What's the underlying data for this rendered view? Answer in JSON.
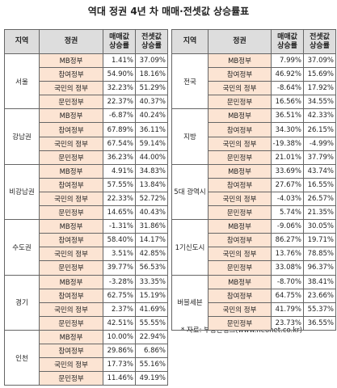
{
  "title": "역대 정권 4년 차 매매·전셋값 상승률표",
  "header": [
    "지역",
    "정권",
    "매매값 상승률",
    "전셋값 상승률"
  ],
  "tables": [
    {
      "regions": [
        {
          "name": "서울",
          "rows": [
            {
              "gov": "MB정부",
              "sale": "1.41%",
              "jeonse": "37.09%"
            },
            {
              "gov": "참여정부",
              "sale": "54.90%",
              "jeonse": "18.16%"
            },
            {
              "gov": "국민의 정부",
              "sale": "32.23%",
              "jeonse": "51.29%"
            },
            {
              "gov": "문민정부",
              "sale": "22.37%",
              "jeonse": "40.37%"
            }
          ]
        },
        {
          "name": "강남권",
          "rows": [
            {
              "gov": "MB정부",
              "sale": "-6.87%",
              "jeonse": "40.24%"
            },
            {
              "gov": "참여정부",
              "sale": "67.89%",
              "jeonse": "36.11%"
            },
            {
              "gov": "국민의 정부",
              "sale": "67.54%",
              "jeonse": "59.14%"
            },
            {
              "gov": "문민정부",
              "sale": "36.23%",
              "jeonse": "44.00%"
            }
          ]
        },
        {
          "name": "비강남권",
          "rows": [
            {
              "gov": "MB정부",
              "sale": "4.91%",
              "jeonse": "34.83%"
            },
            {
              "gov": "참여정부",
              "sale": "57.55%",
              "jeonse": "13.84%"
            },
            {
              "gov": "국민의 정부",
              "sale": "22.33%",
              "jeonse": "52.72%"
            },
            {
              "gov": "문민정부",
              "sale": "14.65%",
              "jeonse": "40.43%"
            }
          ]
        },
        {
          "name": "수도권",
          "rows": [
            {
              "gov": "MB정부",
              "sale": "-1.31%",
              "jeonse": "31.86%"
            },
            {
              "gov": "참여정부",
              "sale": "58.40%",
              "jeonse": "14.17%"
            },
            {
              "gov": "국민의 정부",
              "sale": "3.51%",
              "jeonse": "42.85%"
            },
            {
              "gov": "문민정부",
              "sale": "39.77%",
              "jeonse": "56.53%"
            }
          ]
        },
        {
          "name": "경기",
          "rows": [
            {
              "gov": "MB정부",
              "sale": "-3.28%",
              "jeonse": "33.35%"
            },
            {
              "gov": "참여정부",
              "sale": "62.75%",
              "jeonse": "15.19%"
            },
            {
              "gov": "국민의 정부",
              "sale": "2.37%",
              "jeonse": "41.69%"
            },
            {
              "gov": "문민정부",
              "sale": "42.51%",
              "jeonse": "55.55%"
            }
          ]
        },
        {
          "name": "인천",
          "rows": [
            {
              "gov": "MB정부",
              "sale": "10.00%",
              "jeonse": "22.94%"
            },
            {
              "gov": "참여정부",
              "sale": "29.86%",
              "jeonse": "6.86%"
            },
            {
              "gov": "국민의 정부",
              "sale": "17.73%",
              "jeonse": "55.16%"
            },
            {
              "gov": "문민정부",
              "sale": "11.46%",
              "jeonse": "49.19%"
            }
          ]
        }
      ]
    },
    {
      "regions": [
        {
          "name": "전국",
          "rows": [
            {
              "gov": "MB정부",
              "sale": "7.99%",
              "jeonse": "37.09%"
            },
            {
              "gov": "참여정부",
              "sale": "46.92%",
              "jeonse": "15.69%"
            },
            {
              "gov": "국민의 정부",
              "sale": "-8.64%",
              "jeonse": "17.92%"
            },
            {
              "gov": "문민정부",
              "sale": "16.56%",
              "jeonse": "34.55%"
            }
          ]
        },
        {
          "name": "지방",
          "rows": [
            {
              "gov": "MB정부",
              "sale": "36.51%",
              "jeonse": "42.33%"
            },
            {
              "gov": "참여정부",
              "sale": "34.30%",
              "jeonse": "26.15%"
            },
            {
              "gov": "국민의 정부",
              "sale": "-19.38%",
              "jeonse": "-4.99%"
            },
            {
              "gov": "문민정부",
              "sale": "21.01%",
              "jeonse": "37.79%"
            }
          ]
        },
        {
          "name": "5대 광역시",
          "rows": [
            {
              "gov": "MB정부",
              "sale": "33.69%",
              "jeonse": "43.74%"
            },
            {
              "gov": "참여정부",
              "sale": "27.67%",
              "jeonse": "16.55%"
            },
            {
              "gov": "국민의 정부",
              "sale": "-4.03%",
              "jeonse": "26.57%"
            },
            {
              "gov": "문민정부",
              "sale": "5.74%",
              "jeonse": "21.35%"
            }
          ]
        },
        {
          "name": "1기신도시",
          "rows": [
            {
              "gov": "MB정부",
              "sale": "-9.06%",
              "jeonse": "30.05%"
            },
            {
              "gov": "참여정부",
              "sale": "86.27%",
              "jeonse": "19.71%"
            },
            {
              "gov": "국민의 정부",
              "sale": "13.76%",
              "jeonse": "78.85%"
            },
            {
              "gov": "문민정부",
              "sale": "33.08%",
              "jeonse": "96.37%"
            }
          ]
        },
        {
          "name": "버블세븐",
          "rows": [
            {
              "gov": "MB정부",
              "sale": "-8.70%",
              "jeonse": "38.41%"
            },
            {
              "gov": "참여정부",
              "sale": "64.75%",
              "jeonse": "23.66%"
            },
            {
              "gov": "국민의 정부",
              "sale": "41.79%",
              "jeonse": "55.37%"
            },
            {
              "gov": "문민정부",
              "sale": "23.73%",
              "jeonse": "36.55%"
            }
          ]
        }
      ]
    }
  ],
  "note": "* 자료: 부동산뱅크(www.neonet.co.kr)"
}
